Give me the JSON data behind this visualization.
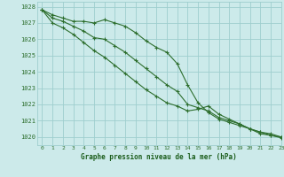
{
  "background_color": "#cceaea",
  "grid_color": "#9ecece",
  "line_color": "#2d6e2d",
  "marker_color": "#2d6e2d",
  "xlabel": "Graphe pression niveau de la mer (hPa)",
  "xlabel_color": "#1a5c1a",
  "ylim": [
    1019.5,
    1028.3
  ],
  "xlim": [
    -0.5,
    23
  ],
  "yticks": [
    1020,
    1021,
    1022,
    1023,
    1024,
    1025,
    1026,
    1027,
    1028
  ],
  "xticks": [
    0,
    1,
    2,
    3,
    4,
    5,
    6,
    7,
    8,
    9,
    10,
    11,
    12,
    13,
    14,
    15,
    16,
    17,
    18,
    19,
    20,
    21,
    22,
    23
  ],
  "series": [
    [
      1027.8,
      1027.5,
      1027.3,
      1027.1,
      1027.1,
      1027.0,
      1027.2,
      1027.0,
      1026.8,
      1026.4,
      1025.9,
      1025.5,
      1025.2,
      1024.5,
      1023.2,
      1022.1,
      1021.5,
      1021.1,
      1020.9,
      1020.7,
      1020.5,
      1020.3,
      1020.2,
      1020.0
    ],
    [
      1027.8,
      1027.3,
      1027.1,
      1026.8,
      1026.5,
      1026.1,
      1026.0,
      1025.6,
      1025.2,
      1024.7,
      1024.2,
      1023.7,
      1023.2,
      1022.8,
      1022.0,
      1021.8,
      1021.6,
      1021.2,
      1021.0,
      1020.8,
      1020.5,
      1020.3,
      1020.1,
      1020.0
    ],
    [
      1027.8,
      1027.0,
      1026.7,
      1026.3,
      1025.8,
      1025.3,
      1024.9,
      1024.4,
      1023.9,
      1023.4,
      1022.9,
      1022.5,
      1022.1,
      1021.9,
      1021.6,
      1021.7,
      1021.9,
      1021.4,
      1021.1,
      1020.8,
      1020.5,
      1020.2,
      1020.1,
      1019.95
    ]
  ],
  "figsize": [
    3.2,
    2.0
  ],
  "dpi": 100
}
